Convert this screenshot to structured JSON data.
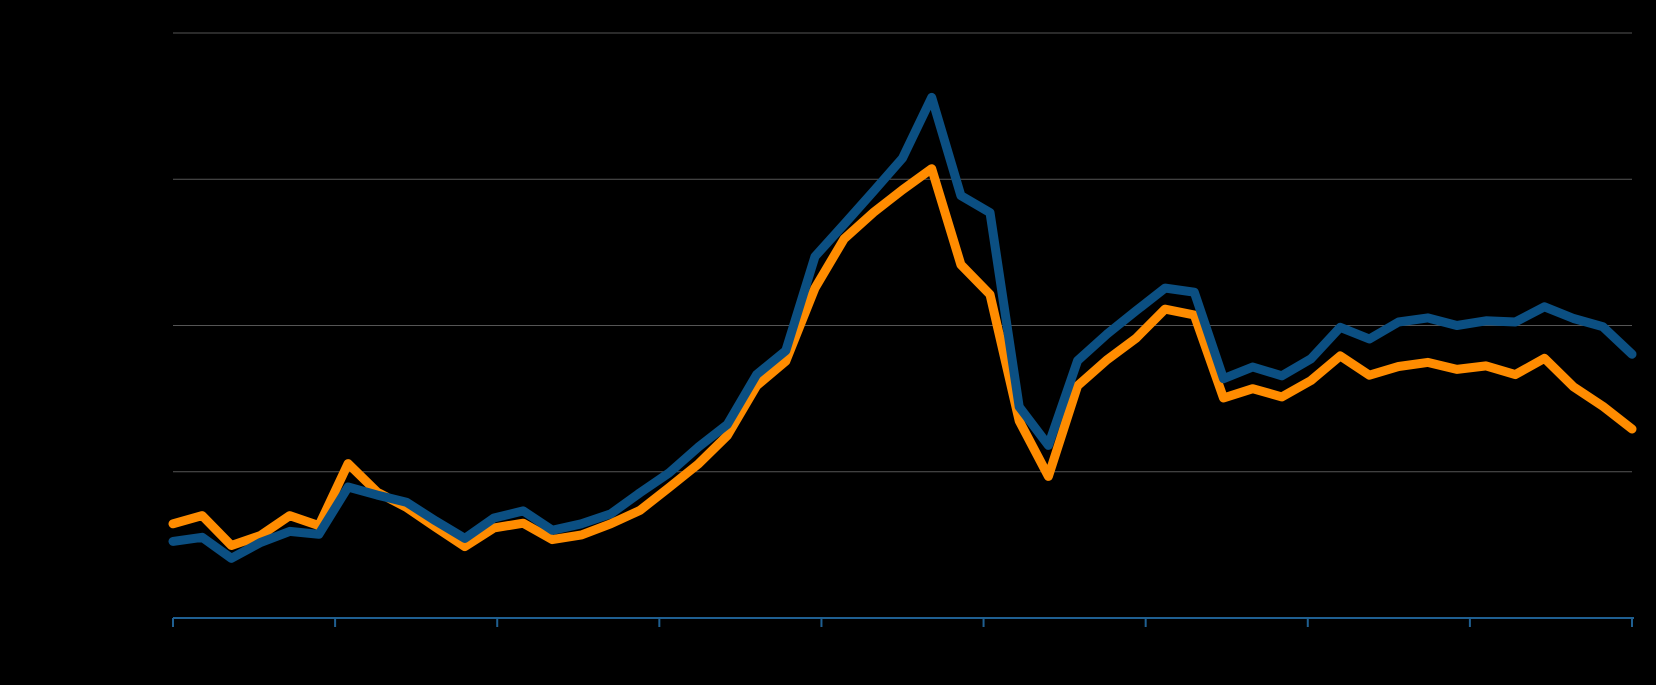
{
  "chart_data": {
    "type": "line",
    "title": "",
    "xlabel": "",
    "ylabel": "",
    "grid": true,
    "legend": "none",
    "x_ticks": 10,
    "y_gridlines": 5,
    "x": [
      0,
      2,
      4,
      6,
      8,
      10,
      12,
      14,
      16,
      18,
      20,
      22,
      24,
      26,
      28,
      30,
      32,
      34,
      36,
      38,
      40,
      42,
      44,
      46,
      48,
      50,
      52,
      54,
      56,
      58,
      60,
      62,
      64,
      66,
      68,
      70,
      72,
      74,
      76,
      78,
      80,
      82,
      84,
      86,
      88,
      90,
      92,
      94,
      96,
      98,
      100
    ],
    "xlim": [
      0,
      100
    ],
    "ylim": [
      0,
      100
    ],
    "series": [
      {
        "color": "#0B4F82",
        "values": [
          13.1,
          13.8,
          10.2,
          12.9,
          14.8,
          14.3,
          22.4,
          21.0,
          19.8,
          16.6,
          13.6,
          17.1,
          18.3,
          15.0,
          16.1,
          17.8,
          21.4,
          24.8,
          29.2,
          33.1,
          41.6,
          45.7,
          61.8,
          67.3,
          72.9,
          78.6,
          89.0,
          72.2,
          69.3,
          36.1,
          29.5,
          44.0,
          48.5,
          52.5,
          56.4,
          55.7,
          40.9,
          42.9,
          41.4,
          44.3,
          49.7,
          47.7,
          50.6,
          51.3,
          50.0,
          50.8,
          50.6,
          53.2,
          51.2,
          49.8,
          45.1
        ]
      },
      {
        "color": "#FF8C00",
        "values": [
          16.1,
          17.5,
          12.4,
          14.1,
          17.5,
          15.8,
          26.4,
          21.5,
          18.9,
          15.5,
          12.2,
          15.4,
          16.2,
          13.4,
          14.2,
          16.1,
          18.4,
          22.3,
          26.3,
          31.2,
          39.7,
          43.9,
          56.4,
          64.8,
          69.3,
          73.2,
          76.8,
          60.4,
          55.3,
          33.7,
          24.2,
          39.7,
          44.1,
          47.8,
          52.8,
          51.8,
          37.6,
          39.2,
          37.8,
          40.6,
          44.8,
          41.5,
          43.0,
          43.7,
          42.5,
          43.1,
          41.6,
          44.4,
          39.5,
          36.2,
          32.3
        ]
      }
    ]
  }
}
